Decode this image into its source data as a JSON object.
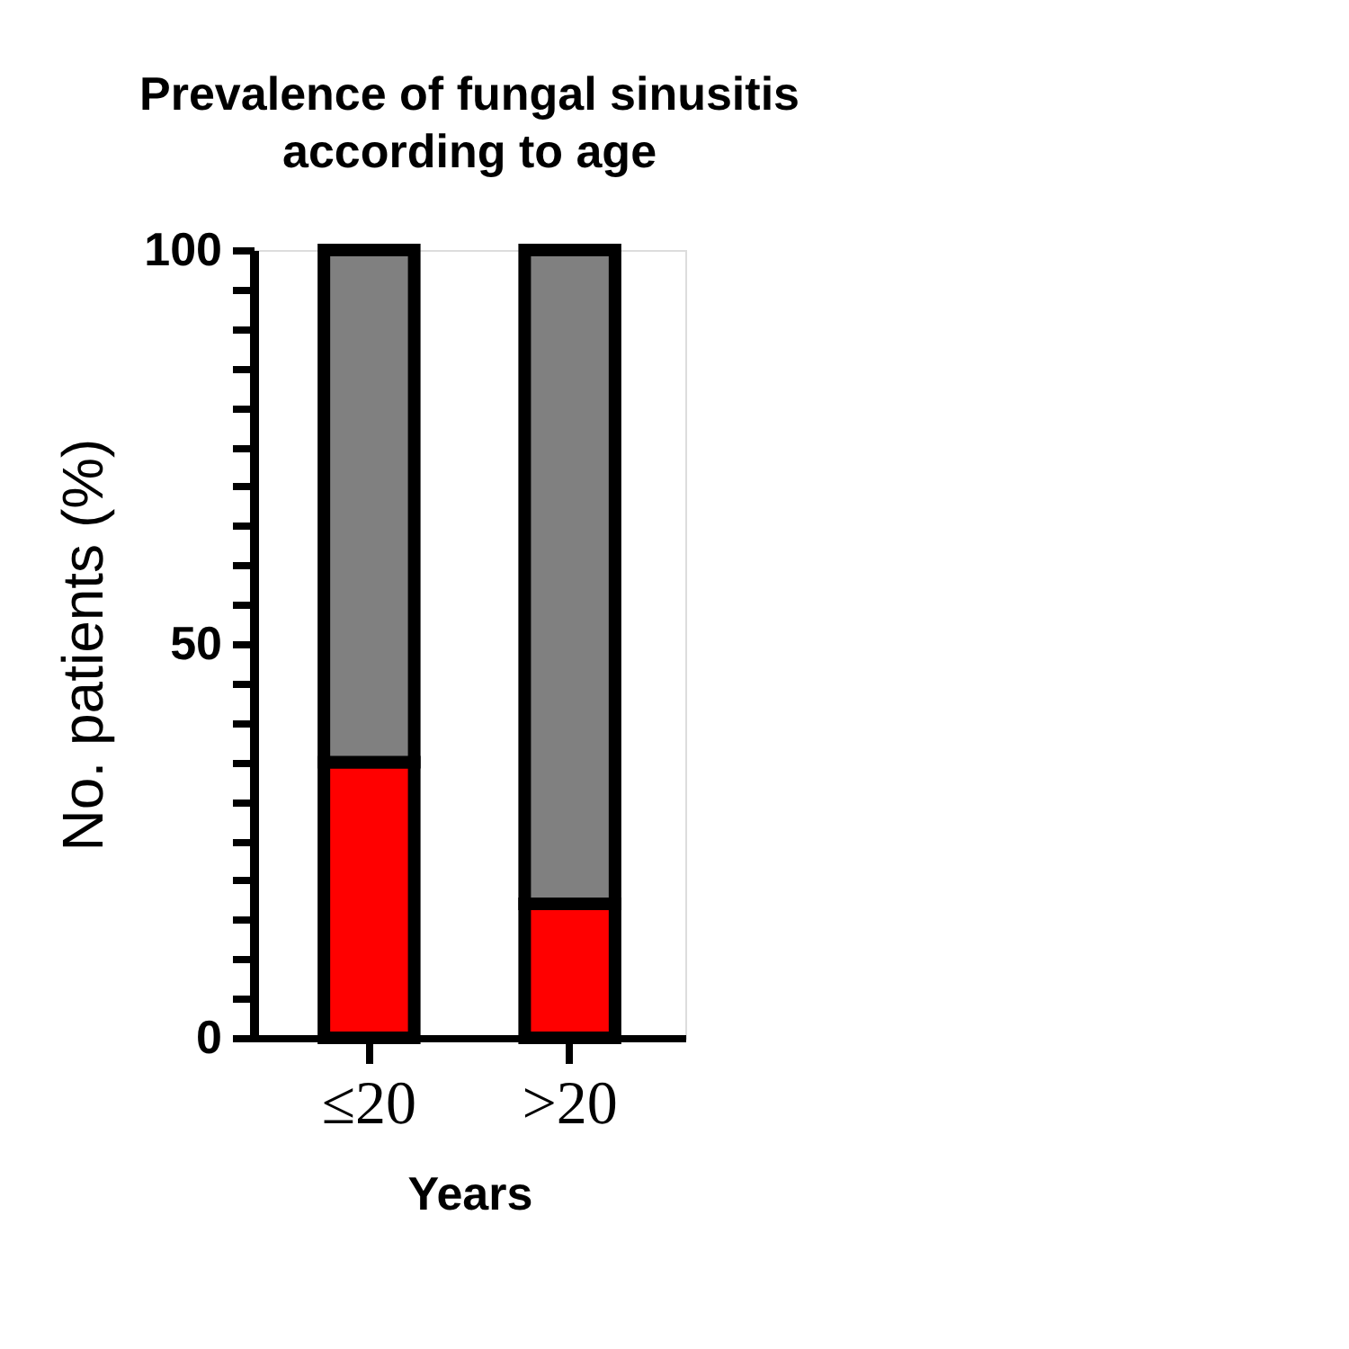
{
  "chart_data": {
    "type": "bar",
    "title": "Prevalence of fungal sinusitis according to age",
    "xlabel": "Years",
    "ylabel": "No. patients (%)",
    "categories": [
      "≤20",
      ">20"
    ],
    "stacked": true,
    "series": [
      {
        "color": "#ff0000",
        "values": [
          35,
          17
        ]
      },
      {
        "color": "#808080",
        "values": [
          65,
          83
        ]
      }
    ],
    "ylim": [
      0,
      100
    ],
    "yticks": [
      0,
      {
        "value": 5,
        "label": null
      },
      {
        "value": 10,
        "label": null
      },
      {
        "value": 15,
        "label": null
      },
      {
        "value": 20,
        "label": null
      },
      {
        "value": 25,
        "label": null
      },
      {
        "value": 30,
        "label": null
      },
      {
        "value": 35,
        "label": null
      },
      {
        "value": 40,
        "label": null
      },
      {
        "value": 45,
        "label": null
      },
      50,
      {
        "value": 55,
        "label": null
      },
      {
        "value": 60,
        "label": null
      },
      {
        "value": 65,
        "label": null
      },
      {
        "value": 70,
        "label": null
      },
      {
        "value": 75,
        "label": null
      },
      {
        "value": 80,
        "label": null
      },
      {
        "value": 85,
        "label": null
      },
      {
        "value": 90,
        "label": null
      },
      {
        "value": 95,
        "label": null
      },
      100
    ],
    "grid": false,
    "legend": false
  }
}
